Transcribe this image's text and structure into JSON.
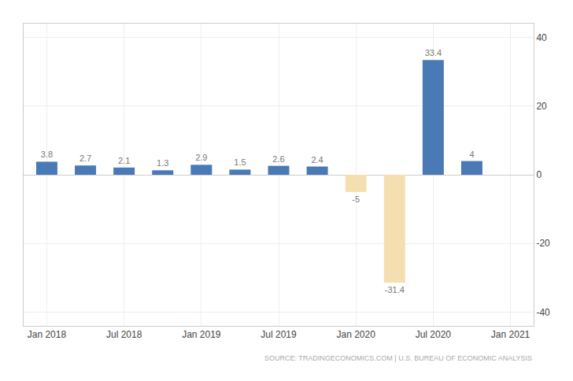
{
  "chart_data": {
    "type": "bar",
    "categories": [
      "Jan 2018",
      null,
      "Jul 2018",
      null,
      "Jan 2019",
      null,
      "Jul 2019",
      null,
      "Jan 2020",
      null,
      "Jul 2020",
      null,
      "Jan 2021"
    ],
    "values": [
      3.8,
      2.7,
      2.1,
      1.3,
      2.9,
      1.5,
      2.6,
      2.4,
      -5,
      -31.4,
      33.4,
      4,
      null
    ],
    "colors": [
      "#4A7AB5",
      "#4A7AB5",
      "#4A7AB5",
      "#4A7AB5",
      "#4A7AB5",
      "#4A7AB5",
      "#4A7AB5",
      "#4A7AB5",
      "#F5DFB0",
      "#F5DFB0",
      "#4A7AB5",
      "#4A7AB5",
      null
    ],
    "ylim": [
      -44,
      44
    ],
    "yticks": [
      -40,
      -20,
      0,
      20,
      40
    ],
    "grid": true,
    "data_labels": true,
    "annotations": [
      "SOURCE: TRADINGECONOMICS.COM | U.S. BUREAU OF ECONOMIC ANALYSIS"
    ]
  }
}
